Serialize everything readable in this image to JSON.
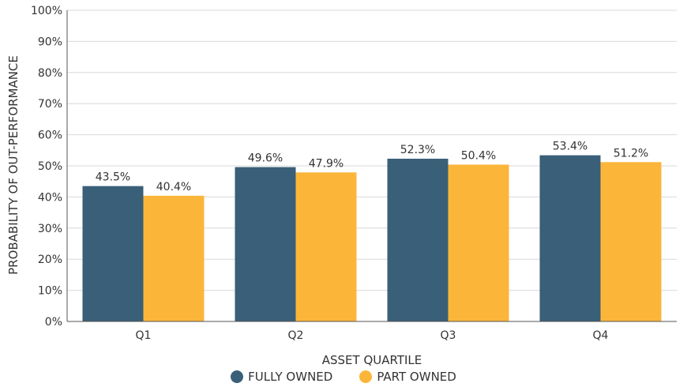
{
  "chart_data": {
    "type": "bar",
    "categories": [
      "Q1",
      "Q2",
      "Q3",
      "Q4"
    ],
    "series": [
      {
        "name": "FULLY OWNED",
        "values": [
          43.5,
          49.6,
          52.3,
          53.4
        ],
        "labels": [
          "43.5%",
          "49.6%",
          "52.3%",
          "53.4%"
        ],
        "color": "#3a5f78"
      },
      {
        "name": "PART OWNED",
        "values": [
          40.4,
          47.9,
          50.4,
          51.2
        ],
        "labels": [
          "40.4%",
          "47.9%",
          "50.4%",
          "51.2%"
        ],
        "color": "#fbb63a"
      }
    ],
    "xlabel": "ASSET QUARTILE",
    "ylabel": "PROBABILITY OF OUT-PERFORMANCE",
    "ylim": [
      0,
      100
    ],
    "yticks": [
      "0%",
      "10%",
      "20%",
      "30%",
      "40%",
      "50%",
      "60%",
      "70%",
      "80%",
      "90%",
      "100%"
    ],
    "grid": true,
    "legend_position": "bottom"
  }
}
